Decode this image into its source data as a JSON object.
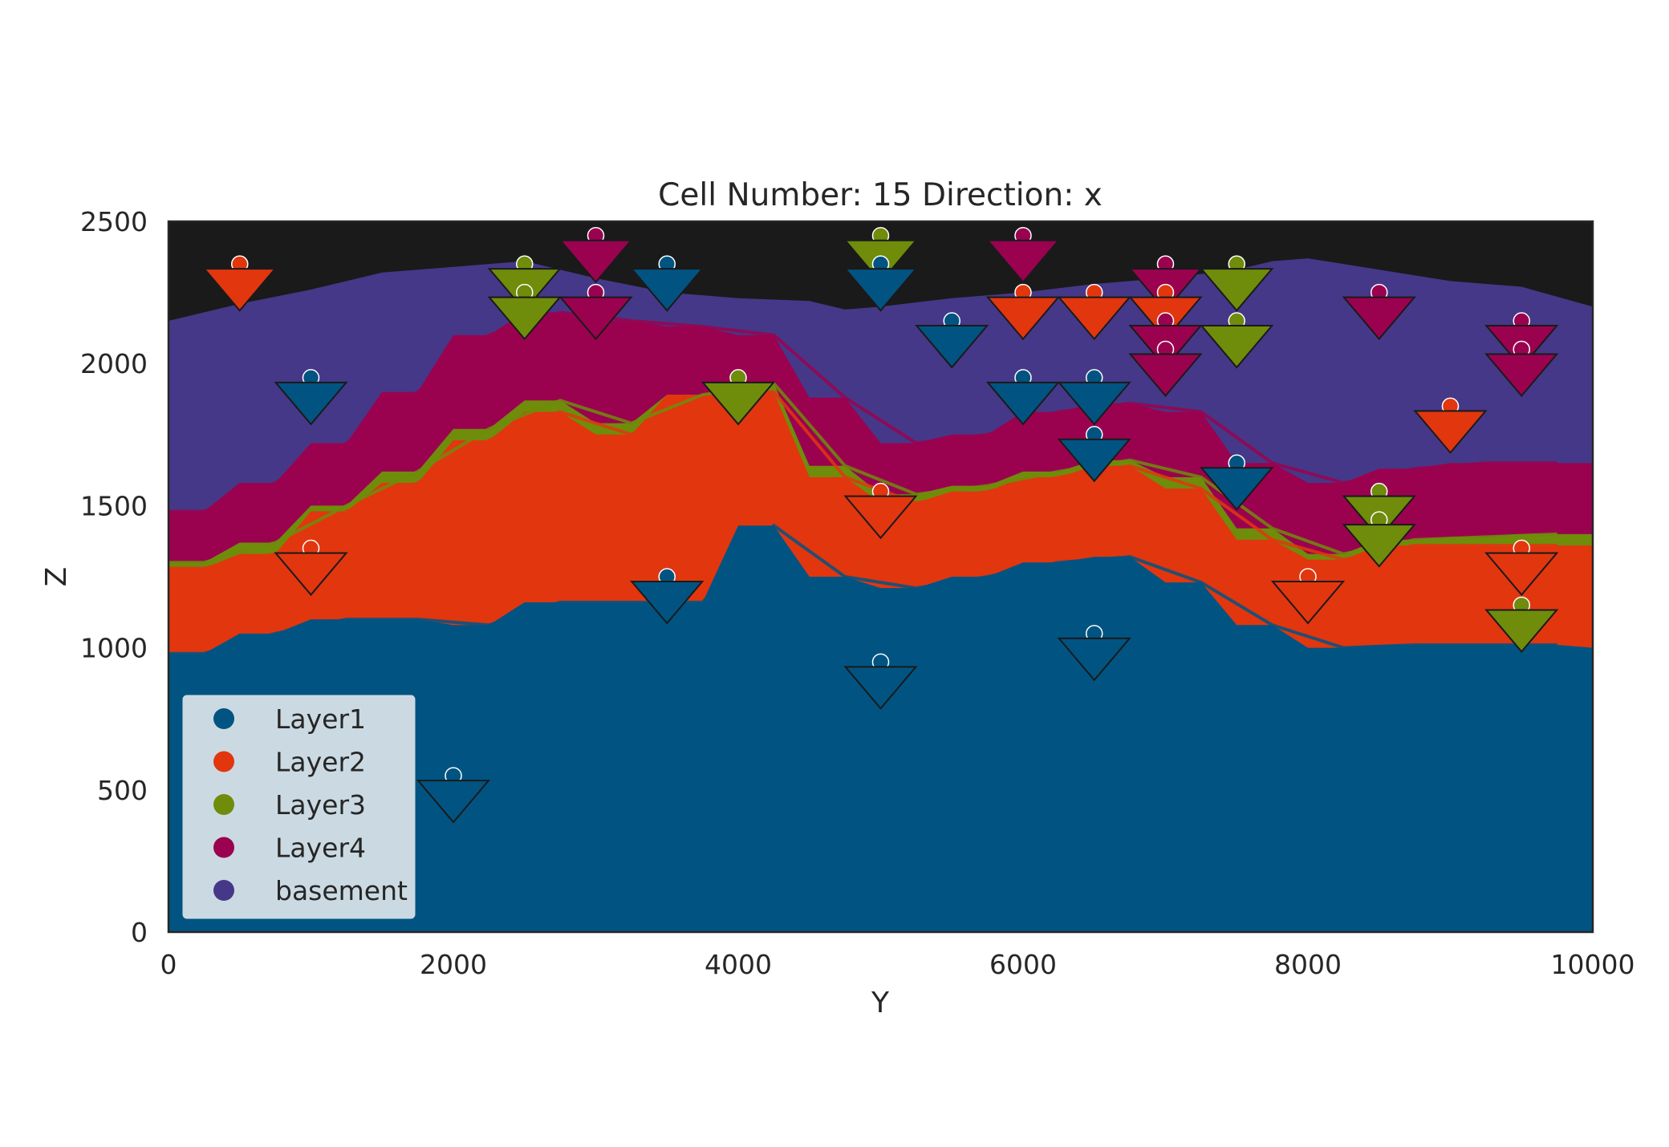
{
  "chart_data": {
    "type": "area",
    "title": "Cell Number: 15 Direction: x",
    "xlabel": "Y",
    "ylabel": "Z",
    "xlim": [
      0,
      10000
    ],
    "ylim": [
      0,
      2500
    ],
    "xticks": [
      "0",
      "2000",
      "4000",
      "6000",
      "8000",
      "10000"
    ],
    "yticks": [
      "0",
      "500",
      "1000",
      "1500",
      "2000",
      "2500"
    ],
    "grid": false,
    "legend_position": "lower-left",
    "topography_color": "#1a1a1a",
    "series": [
      {
        "name": "Layer1",
        "color": "#015482",
        "x": [
          0,
          250,
          500,
          750,
          1000,
          1250,
          1500,
          1750,
          2000,
          2250,
          2500,
          2750,
          3000,
          3250,
          3500,
          3750,
          4000,
          4250,
          4500,
          4750,
          5000,
          5250,
          5500,
          5750,
          6000,
          6250,
          6500,
          6750,
          7000,
          7250,
          7500,
          7750,
          8000,
          8250,
          8500,
          8750,
          9000,
          9250,
          9500,
          9750,
          10000
        ],
        "top": [
          980,
          980,
          1050,
          1050,
          1100,
          1100,
          1100,
          1100,
          1080,
          1080,
          1160,
          1160,
          1160,
          1160,
          1160,
          1160,
          1430,
          1430,
          1250,
          1250,
          1210,
          1210,
          1250,
          1250,
          1300,
          1300,
          1320,
          1320,
          1230,
          1230,
          1080,
          1080,
          1000,
          1000,
          1010,
          1010,
          1010,
          1010,
          1010,
          1010,
          1000
        ]
      },
      {
        "name": "Layer2",
        "color": "#e2360f",
        "x": [
          0,
          250,
          500,
          750,
          1000,
          1250,
          1500,
          1750,
          2000,
          2250,
          2500,
          2750,
          3000,
          3250,
          3500,
          3750,
          4000,
          4250,
          4500,
          4750,
          5000,
          5250,
          5500,
          5750,
          6000,
          6250,
          6500,
          6750,
          7000,
          7250,
          7500,
          7750,
          8000,
          8250,
          8500,
          8750,
          9000,
          9250,
          9500,
          9750,
          10000
        ],
        "top": [
          1280,
          1280,
          1330,
          1330,
          1480,
          1480,
          1580,
          1580,
          1730,
          1730,
          1830,
          1830,
          1750,
          1750,
          1890,
          1890,
          1900,
          1900,
          1600,
          1600,
          1510,
          1510,
          1550,
          1550,
          1600,
          1600,
          1640,
          1640,
          1560,
          1560,
          1380,
          1380,
          1310,
          1310,
          1360,
          1360,
          1360,
          1360,
          1360,
          1360,
          1360
        ]
      },
      {
        "name": "Layer3",
        "color": "#6f8c0b",
        "x": [
          0,
          250,
          500,
          750,
          1000,
          1250,
          1500,
          1750,
          2000,
          2250,
          2500,
          2750,
          3000,
          3250,
          3500,
          3750,
          4000,
          4250,
          4500,
          4750,
          5000,
          5250,
          5500,
          5750,
          6000,
          6250,
          6500,
          6750,
          7000,
          7250,
          7500,
          7750,
          8000,
          8250,
          8500,
          8750,
          9000,
          9250,
          9500,
          9750,
          10000
        ],
        "top": [
          1300,
          1300,
          1370,
          1370,
          1500,
          1500,
          1620,
          1620,
          1770,
          1770,
          1870,
          1870,
          1790,
          1790,
          1890,
          1890,
          1930,
          1930,
          1640,
          1640,
          1540,
          1540,
          1570,
          1570,
          1620,
          1620,
          1660,
          1660,
          1600,
          1600,
          1420,
          1420,
          1330,
          1330,
          1380,
          1380,
          1390,
          1390,
          1400,
          1400,
          1400
        ]
      },
      {
        "name": "Layer4",
        "color": "#9a0250",
        "x": [
          0,
          250,
          500,
          750,
          1000,
          1250,
          1500,
          1750,
          2000,
          2250,
          2500,
          2750,
          3000,
          3250,
          3500,
          3750,
          4000,
          4250,
          4500,
          4750,
          5000,
          5250,
          5500,
          5750,
          6000,
          6250,
          6500,
          6750,
          7000,
          7250,
          7500,
          7750,
          8000,
          8250,
          8500,
          8750,
          9000,
          9250,
          9500,
          9750,
          10000
        ],
        "top": [
          1480,
          1480,
          1580,
          1580,
          1720,
          1720,
          1900,
          1900,
          2100,
          2100,
          2180,
          2180,
          2150,
          2150,
          2130,
          2130,
          2100,
          2100,
          1880,
          1880,
          1720,
          1720,
          1750,
          1750,
          1830,
          1830,
          1860,
          1860,
          1830,
          1830,
          1650,
          1650,
          1580,
          1580,
          1630,
          1630,
          1650,
          1650,
          1650,
          1650,
          1650
        ]
      },
      {
        "name": "basement",
        "color": "#453888",
        "x": [
          0,
          500,
          1000,
          1500,
          2000,
          2500,
          3000,
          3500,
          4000,
          4500,
          4750,
          5000,
          5500,
          6000,
          6500,
          7000,
          7500,
          7750,
          8000,
          8500,
          9000,
          9500,
          10000
        ],
        "top": [
          2150,
          2210,
          2260,
          2320,
          2340,
          2360,
          2300,
          2250,
          2230,
          2220,
          2190,
          2200,
          2230,
          2250,
          2280,
          2300,
          2330,
          2360,
          2370,
          2330,
          2290,
          2270,
          2200
        ]
      }
    ],
    "points": [
      {
        "x": 500,
        "z": 2350,
        "layer": "Layer2",
        "dir": "down"
      },
      {
        "x": 1000,
        "z": 1950,
        "layer": "Layer1",
        "dir": "down"
      },
      {
        "x": 1000,
        "z": 1350,
        "layer": "Layer2",
        "dir": "down"
      },
      {
        "x": 2000,
        "z": 550,
        "layer": "Layer1",
        "dir": "down"
      },
      {
        "x": 2500,
        "z": 2350,
        "layer": "Layer3",
        "dir": "down"
      },
      {
        "x": 2500,
        "z": 2250,
        "layer": "Layer3",
        "dir": "down"
      },
      {
        "x": 3000,
        "z": 2450,
        "layer": "Layer4",
        "dir": "down"
      },
      {
        "x": 3000,
        "z": 2250,
        "layer": "Layer4",
        "dir": "down"
      },
      {
        "x": 3500,
        "z": 2350,
        "layer": "Layer1",
        "dir": "down"
      },
      {
        "x": 3500,
        "z": 1250,
        "layer": "Layer1",
        "dir": "down"
      },
      {
        "x": 4000,
        "z": 1950,
        "layer": "Layer3",
        "dir": "down"
      },
      {
        "x": 5000,
        "z": 2450,
        "layer": "Layer3",
        "dir": "down"
      },
      {
        "x": 5000,
        "z": 2350,
        "layer": "Layer1",
        "dir": "down"
      },
      {
        "x": 5000,
        "z": 1550,
        "layer": "Layer2",
        "dir": "down"
      },
      {
        "x": 5000,
        "z": 950,
        "layer": "Layer1",
        "dir": "down"
      },
      {
        "x": 5500,
        "z": 2150,
        "layer": "Layer1",
        "dir": "down"
      },
      {
        "x": 6000,
        "z": 2450,
        "layer": "Layer4",
        "dir": "down"
      },
      {
        "x": 6000,
        "z": 2250,
        "layer": "Layer2",
        "dir": "down"
      },
      {
        "x": 6000,
        "z": 1950,
        "layer": "Layer1",
        "dir": "down"
      },
      {
        "x": 6500,
        "z": 2250,
        "layer": "Layer2",
        "dir": "down"
      },
      {
        "x": 6500,
        "z": 1950,
        "layer": "Layer1",
        "dir": "down"
      },
      {
        "x": 6500,
        "z": 1750,
        "layer": "Layer1",
        "dir": "down"
      },
      {
        "x": 6500,
        "z": 1050,
        "layer": "Layer1",
        "dir": "down"
      },
      {
        "x": 7000,
        "z": 2350,
        "layer": "Layer4",
        "dir": "down"
      },
      {
        "x": 7000,
        "z": 2250,
        "layer": "Layer2",
        "dir": "down"
      },
      {
        "x": 7000,
        "z": 2150,
        "layer": "Layer4",
        "dir": "down"
      },
      {
        "x": 7000,
        "z": 2050,
        "layer": "Layer4",
        "dir": "down"
      },
      {
        "x": 7500,
        "z": 2350,
        "layer": "Layer3",
        "dir": "down"
      },
      {
        "x": 7500,
        "z": 2150,
        "layer": "Layer3",
        "dir": "down"
      },
      {
        "x": 7500,
        "z": 1650,
        "layer": "Layer1",
        "dir": "down"
      },
      {
        "x": 8000,
        "z": 1250,
        "layer": "Layer2",
        "dir": "down"
      },
      {
        "x": 8500,
        "z": 2250,
        "layer": "Layer4",
        "dir": "down"
      },
      {
        "x": 8500,
        "z": 1550,
        "layer": "Layer3",
        "dir": "down"
      },
      {
        "x": 8500,
        "z": 1450,
        "layer": "Layer3",
        "dir": "down"
      },
      {
        "x": 9000,
        "z": 1850,
        "layer": "Layer2",
        "dir": "down"
      },
      {
        "x": 9500,
        "z": 2150,
        "layer": "Layer4",
        "dir": "down"
      },
      {
        "x": 9500,
        "z": 2050,
        "layer": "Layer4",
        "dir": "down"
      },
      {
        "x": 9500,
        "z": 1350,
        "layer": "Layer2",
        "dir": "down"
      },
      {
        "x": 9500,
        "z": 1150,
        "layer": "Layer3",
        "dir": "down"
      }
    ],
    "legend": [
      {
        "label": "Layer1",
        "color": "#015482"
      },
      {
        "label": "Layer2",
        "color": "#e2360f"
      },
      {
        "label": "Layer3",
        "color": "#6f8c0b"
      },
      {
        "label": "Layer4",
        "color": "#9a0250"
      },
      {
        "label": "basement",
        "color": "#453888"
      }
    ]
  }
}
